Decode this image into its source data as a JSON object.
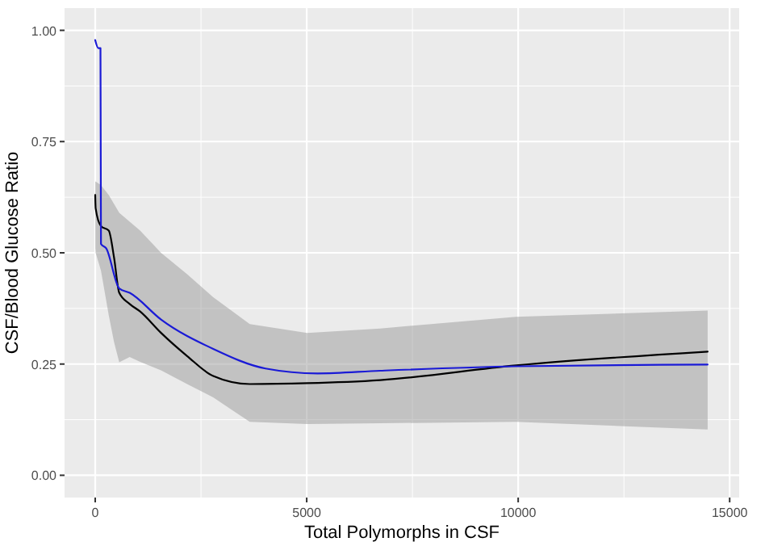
{
  "chart_data": {
    "type": "line",
    "xlabel": "Total Polymorphs in CSF",
    "ylabel": "CSF/Blood Glucose Ratio",
    "xlim": [
      -725,
      15225
    ],
    "ylim": [
      -0.05,
      1.05
    ],
    "xticks": [
      0,
      5000,
      10000,
      15000
    ],
    "yticks": [
      {
        "value": 0,
        "label": "0.00"
      },
      {
        "value": 0.25,
        "label": "0.25"
      },
      {
        "value": 0.5,
        "label": "0.50"
      },
      {
        "value": 0.75,
        "label": "0.75"
      },
      {
        "value": 1,
        "label": "1.00"
      }
    ],
    "grid": true,
    "marker": "none",
    "line_style": "solid",
    "series": [
      {
        "color": "#000000",
        "x": [
          0,
          10,
          136,
          320,
          444,
          568,
          815,
          1062,
          1556,
          2173,
          2790,
          3654,
          5012,
          6741,
          9950,
          14480
        ],
        "values": [
          0.63,
          0.6,
          0.56,
          0.55,
          0.49,
          0.41,
          0.385,
          0.368,
          0.32,
          0.268,
          0.223,
          0.205,
          0.207,
          0.214,
          0.247,
          0.278
        ],
        "lower": [
          0.51,
          0.5,
          0.46,
          0.36,
          0.3,
          0.254,
          0.266,
          0.255,
          0.236,
          0.205,
          0.175,
          0.12,
          0.115,
          0.117,
          0.12,
          0.103
        ],
        "upper": [
          0.66,
          0.66,
          0.652,
          0.63,
          0.61,
          0.59,
          0.57,
          0.55,
          0.5,
          0.452,
          0.4,
          0.34,
          0.32,
          0.33,
          0.356,
          0.37
        ]
      },
      {
        "color": "#1a1ad6",
        "x": [
          0,
          74,
          124,
          136,
          259,
          568,
          815,
          1556,
          2790,
          4025,
          5259,
          6741,
          9950,
          14480
        ],
        "values": [
          0.978,
          0.96,
          0.96,
          0.52,
          0.51,
          0.42,
          0.41,
          0.35,
          0.284,
          0.24,
          0.229,
          0.235,
          0.245,
          0.249
        ]
      }
    ]
  }
}
